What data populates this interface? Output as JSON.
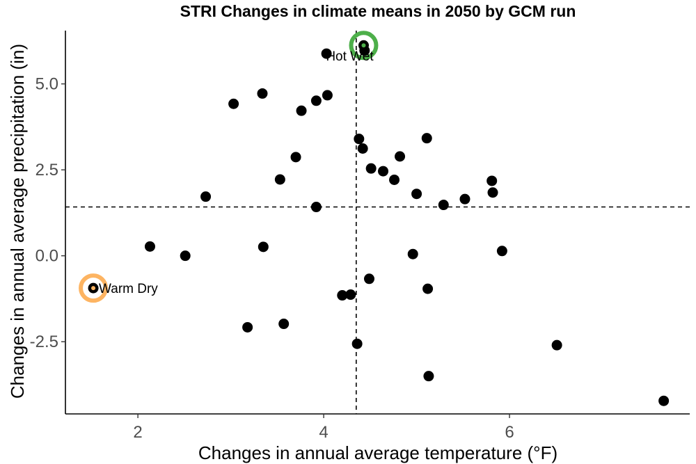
{
  "chart_data": {
    "type": "scatter",
    "title": "STRI Changes in climate means in 2050 by GCM run",
    "xlabel": "Changes in annual average temperature (°F)",
    "ylabel": "Changes in annual average precipitation (in)",
    "xlim": [
      1.22,
      7.94
    ],
    "ylim": [
      -4.6,
      6.55
    ],
    "x_ticks": [
      2,
      4,
      6
    ],
    "x_tick_labels": [
      "2",
      "4",
      "6"
    ],
    "y_ticks": [
      -2.5,
      0.0,
      2.5,
      5.0
    ],
    "y_tick_labels": [
      "-2.5",
      "0.0",
      "2.5",
      "5.0"
    ],
    "grid": false,
    "reference_lines": {
      "x": 4.35,
      "y": 1.42
    },
    "points": [
      {
        "x": 4.03,
        "y": 5.88
      },
      {
        "x": 4.44,
        "y": 5.97
      },
      {
        "x": 4.43,
        "y": 6.12
      },
      {
        "x": 3.34,
        "y": 4.72
      },
      {
        "x": 3.03,
        "y": 4.42
      },
      {
        "x": 3.92,
        "y": 4.51
      },
      {
        "x": 4.04,
        "y": 4.67
      },
      {
        "x": 3.76,
        "y": 4.22
      },
      {
        "x": 4.38,
        "y": 3.4
      },
      {
        "x": 4.42,
        "y": 3.12
      },
      {
        "x": 5.11,
        "y": 3.42
      },
      {
        "x": 3.7,
        "y": 2.87
      },
      {
        "x": 4.82,
        "y": 2.89
      },
      {
        "x": 4.51,
        "y": 2.54
      },
      {
        "x": 4.64,
        "y": 2.46
      },
      {
        "x": 4.76,
        "y": 2.21
      },
      {
        "x": 3.53,
        "y": 2.22
      },
      {
        "x": 2.73,
        "y": 1.72
      },
      {
        "x": 5.0,
        "y": 1.8
      },
      {
        "x": 5.29,
        "y": 1.48
      },
      {
        "x": 5.52,
        "y": 1.65
      },
      {
        "x": 5.81,
        "y": 2.18
      },
      {
        "x": 5.82,
        "y": 1.84
      },
      {
        "x": 3.92,
        "y": 1.42
      },
      {
        "x": 2.13,
        "y": 0.27
      },
      {
        "x": 2.51,
        "y": 0.0
      },
      {
        "x": 3.35,
        "y": 0.26
      },
      {
        "x": 4.96,
        "y": 0.05
      },
      {
        "x": 5.92,
        "y": 0.14
      },
      {
        "x": 1.52,
        "y": -0.94
      },
      {
        "x": 4.49,
        "y": -0.67
      },
      {
        "x": 4.2,
        "y": -1.15
      },
      {
        "x": 4.29,
        "y": -1.13
      },
      {
        "x": 5.12,
        "y": -0.96
      },
      {
        "x": 3.18,
        "y": -2.08
      },
      {
        "x": 3.57,
        "y": -1.98
      },
      {
        "x": 4.36,
        "y": -2.56
      },
      {
        "x": 6.51,
        "y": -2.6
      },
      {
        "x": 5.13,
        "y": -3.5
      },
      {
        "x": 7.66,
        "y": -4.22
      }
    ],
    "highlights": [
      {
        "label": "Hot Wet",
        "x": 4.43,
        "y": 6.12,
        "color": "#4daf4a"
      },
      {
        "label": "Warm Dry",
        "x": 1.52,
        "y": -0.94,
        "color": "#fdb462"
      }
    ],
    "colors": {
      "points": "#000000",
      "axis": "#000000",
      "tick_label": "#4d4d4d"
    }
  }
}
